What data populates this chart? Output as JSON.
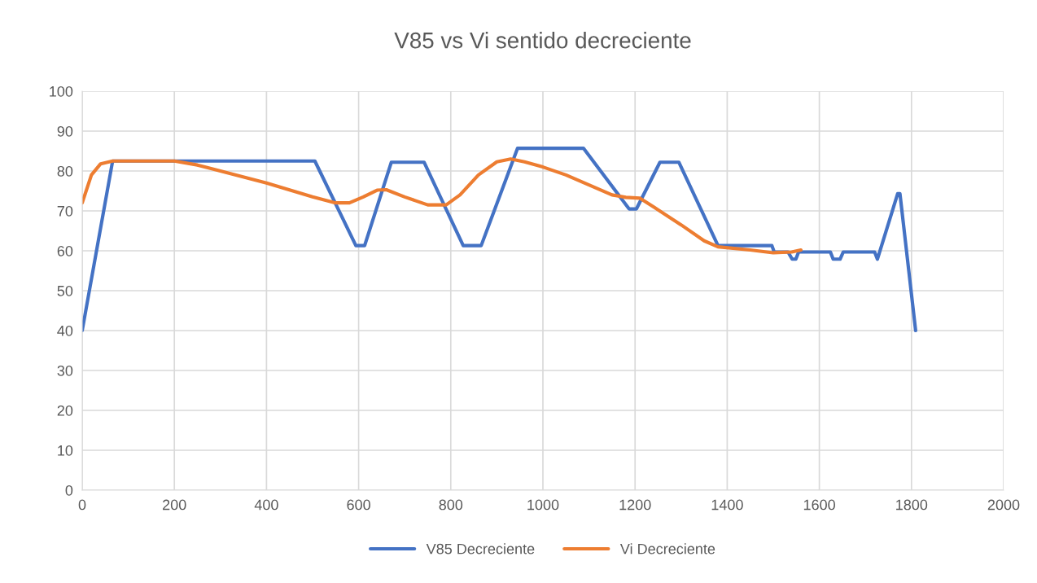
{
  "chart_data": {
    "type": "line",
    "title": "V85 vs Vi sentido decreciente",
    "xlim": [
      0,
      2000
    ],
    "xticks": [
      0,
      200,
      400,
      600,
      800,
      1000,
      1200,
      1400,
      1600,
      1800,
      2000
    ],
    "ylim": [
      0,
      100
    ],
    "yticks": [
      0,
      10,
      20,
      30,
      40,
      50,
      60,
      70,
      80,
      90,
      100
    ],
    "grid": true,
    "legend": "bottom",
    "marker": "none",
    "line_style": "solid",
    "series": [
      {
        "name": "V85 Decreciente",
        "color": "#4472c4",
        "x": [
          0,
          66,
          505,
          594,
          613,
          671,
          742,
          827,
          866,
          945,
          1088,
          1187,
          1203,
          1254,
          1295,
          1380,
          1497,
          1502,
          1532,
          1541,
          1549,
          1555,
          1624,
          1630,
          1645,
          1652,
          1720,
          1726,
          1770,
          1775,
          1809
        ],
        "values": [
          40,
          82.5,
          82.5,
          61.3,
          61.3,
          82.2,
          82.2,
          61.3,
          61.3,
          85.7,
          85.7,
          70.5,
          70.5,
          82.2,
          82.2,
          61.3,
          61.3,
          59.7,
          59.7,
          57.9,
          57.9,
          59.7,
          59.7,
          57.9,
          57.9,
          59.7,
          59.7,
          57.9,
          74.3,
          74.3,
          40
        ]
      },
      {
        "name": "Vi Decreciente",
        "color": "#ed7d31",
        "x": [
          0,
          20,
          40,
          66,
          200,
          250,
          300,
          400,
          500,
          550,
          580,
          610,
          640,
          660,
          700,
          750,
          790,
          820,
          860,
          900,
          930,
          960,
          1000,
          1050,
          1100,
          1150,
          1180,
          1210,
          1240,
          1300,
          1350,
          1380,
          1450,
          1500,
          1540,
          1560
        ],
        "values": [
          72,
          79,
          81.8,
          82.5,
          82.5,
          81.5,
          80,
          77,
          73.5,
          72,
          72,
          73.5,
          75.2,
          75.3,
          73.5,
          71.5,
          71.5,
          74,
          79,
          82.3,
          83,
          82.3,
          81,
          79,
          76.5,
          74,
          73.4,
          73.2,
          71,
          66.5,
          62.5,
          61,
          60.2,
          59.5,
          59.7,
          60.2
        ]
      }
    ]
  }
}
